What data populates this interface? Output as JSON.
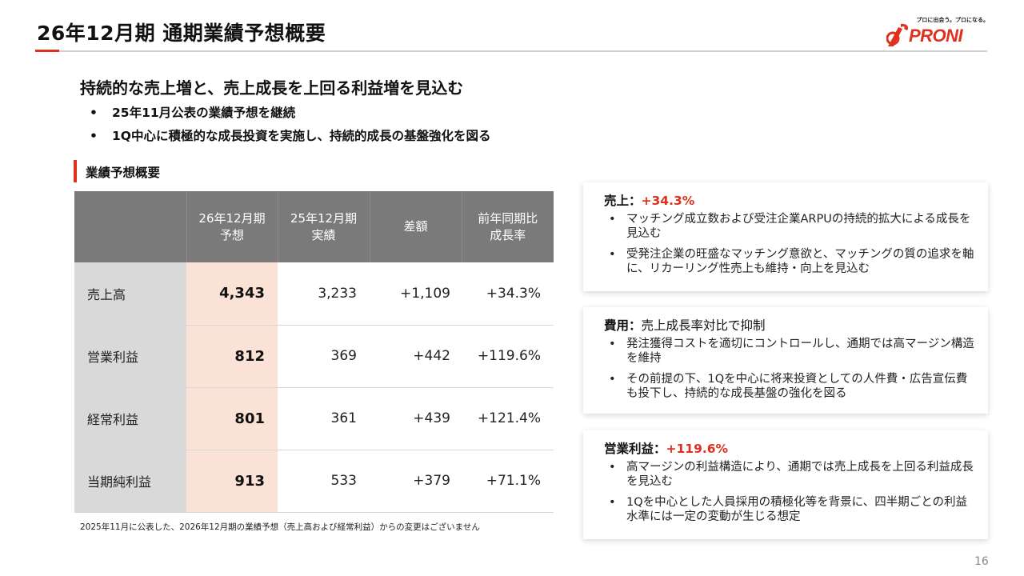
{
  "header": {
    "title": "26年12月期 通期業績予想概要",
    "logo_tagline": "プロに出会う。プロになる。",
    "logo_text": "PRONI"
  },
  "summary": {
    "headline": "持続的な売上増と、売上成長を上回る利益増を見込む",
    "bullets": [
      "25年11月公表の業績予想を継続",
      "1Q中心に積極的な成長投資を実施し、持続的成長の基盤強化を図る"
    ]
  },
  "section": {
    "title": "業績予想概要"
  },
  "table": {
    "headers": [
      "26年12月期\n予想",
      "25年12月期\n実績",
      "差額",
      "前年同期比\n成長率"
    ],
    "rows": [
      {
        "label": "売上高",
        "forecast": "4,343",
        "actual": "3,233",
        "diff": "+1,109",
        "growth": "+34.3%"
      },
      {
        "label": "営業利益",
        "forecast": "812",
        "actual": "369",
        "diff": "+442",
        "growth": "+119.6%"
      },
      {
        "label": "経常利益",
        "forecast": "801",
        "actual": "361",
        "diff": "+439",
        "growth": "+121.4%"
      },
      {
        "label": "当期純利益",
        "forecast": "913",
        "actual": "533",
        "diff": "+379",
        "growth": "+71.1%"
      }
    ],
    "footnote": "2025年11月に公表した、2026年12月期の業績予想（売上高および経常利益）からの変更はございません"
  },
  "cards": [
    {
      "title": "売上：",
      "highlight": "+34.3%",
      "rest": "",
      "items": [
        "マッチング成立数および受注企業ARPUの持続的拡大による成長を見込む",
        "受発注企業の旺盛なマッチング意欲と、マッチングの質の追求を軸に、リカーリング性売上も維持・向上を見込む"
      ]
    },
    {
      "title": "費用：",
      "highlight": "",
      "rest": "売上成長率対比で抑制",
      "items": [
        "発注獲得コストを適切にコントロールし、通期では高マージン構造を維持",
        "その前提の下、1Qを中心に将来投資としての人件費・広告宣伝費も投下し、持続的な成長基盤の強化を図る"
      ]
    },
    {
      "title": "営業利益：",
      "highlight": "+119.6%",
      "rest": "",
      "items": [
        "高マージンの利益構造により、通期では売上成長を上回る利益成長を見込む",
        "1Qを中心とした人員採用の積極化等を背景に、四半期ごとの利益水準には一定の変動が生じる想定"
      ]
    }
  ],
  "bullet_glyph": "•",
  "page_number": "16",
  "colors": {
    "accent": "#e0301e",
    "header_fill": "#7a7a7a",
    "forecast_fill": "#fbe2d6",
    "label_fill": "#d9d9d9"
  }
}
